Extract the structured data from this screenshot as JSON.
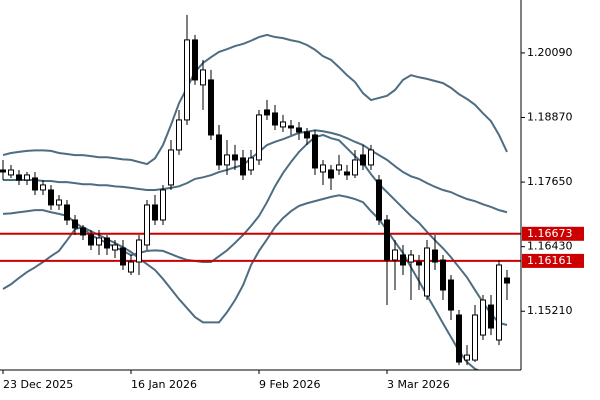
{
  "chart_data": {
    "type": "candlestick",
    "categories": [
      "23 Dec 2025",
      null,
      null,
      null,
      null,
      null,
      null,
      null,
      null,
      null,
      null,
      null,
      null,
      null,
      null,
      null,
      "16 Jan 2026",
      null,
      null,
      null,
      null,
      null,
      null,
      null,
      null,
      null,
      null,
      null,
      null,
      null,
      null,
      null,
      "9 Feb 2026",
      null,
      null,
      null,
      null,
      null,
      null,
      null,
      null,
      null,
      null,
      null,
      null,
      null,
      null,
      null,
      "3 Mar 2026",
      null,
      null,
      null,
      null,
      null,
      null,
      null,
      null,
      null,
      null,
      null,
      null,
      null,
      null,
      null
    ],
    "open": [
      1.17879,
      1.17785,
      1.17785,
      1.1769,
      1.17728,
      1.17501,
      1.17501,
      1.17218,
      1.17218,
      1.16934,
      1.16783,
      1.16651,
      1.16462,
      1.16594,
      1.16367,
      1.16405,
      1.15951,
      1.1614,
      1.16462,
      1.17218,
      1.16934,
      1.17596,
      1.18257,
      1.18824,
      1.20336,
      1.19486,
      1.1958,
      1.1854,
      1.17974,
      1.18163,
      1.18106,
      1.17879,
      1.18068,
      1.19013,
      1.18956,
      1.18692,
      1.18711,
      1.18673,
      1.18597,
      1.1854,
      1.17841,
      1.17879,
      1.17879,
      1.17841,
      1.17785,
      1.18163,
      1.17974,
      1.1769,
      1.16934,
      1.16178,
      1.16273,
      1.1614,
      1.1614,
      1.15498,
      1.16367,
      1.16178,
      1.158,
      1.15139,
      1.14288,
      1.14288,
      1.1476,
      1.15327,
      1.14666,
      1.15838
    ],
    "high": [
      1.18068,
      1.17974,
      1.17879,
      1.17841,
      1.17841,
      1.1769,
      1.17596,
      1.17407,
      1.17312,
      1.17029,
      1.1684,
      1.16745,
      1.16745,
      1.16651,
      1.16556,
      1.16556,
      1.16273,
      1.16651,
      1.17312,
      1.17407,
      1.17596,
      1.18446,
      1.19013,
      1.20808,
      1.20431,
      1.19958,
      1.19769,
      1.18729,
      1.18446,
      1.18352,
      1.18257,
      1.18257,
      1.19013,
      1.19202,
      1.19107,
      1.18919,
      1.18824,
      1.18786,
      1.18673,
      1.18635,
      1.18068,
      1.17974,
      1.18163,
      1.17974,
      1.18257,
      1.18352,
      1.18352,
      1.17785,
      1.17029,
      1.16556,
      1.16462,
      1.16367,
      1.16273,
      1.16556,
      1.16651,
      1.16273,
      1.15895,
      1.15233,
      1.14571,
      1.15327,
      1.15517,
      1.15517,
      1.16178,
      1.15989
    ],
    "low": [
      1.1769,
      1.17728,
      1.17596,
      1.17596,
      1.17407,
      1.17407,
      1.17123,
      1.17123,
      1.1684,
      1.16651,
      1.16556,
      1.16367,
      1.16273,
      1.16273,
      1.16216,
      1.15989,
      1.15895,
      1.15895,
      1.16367,
      1.1684,
      1.1684,
      1.17501,
      1.18163,
      1.18729,
      1.19486,
      1.19013,
      1.18446,
      1.17879,
      1.17785,
      1.17879,
      1.1769,
      1.17785,
      1.17974,
      1.18824,
      1.18635,
      1.18597,
      1.1854,
      1.18446,
      1.18352,
      1.17785,
      1.17596,
      1.17501,
      1.17785,
      1.1769,
      1.17728,
      1.17879,
      1.17879,
      1.1684,
      1.15327,
      1.15611,
      1.15895,
      1.15422,
      1.15611,
      1.15422,
      1.15989,
      1.15422,
      1.15044,
      1.14193,
      1.14193,
      1.1425,
      1.14666,
      1.1476,
      1.14571,
      1.15422
    ],
    "close": [
      1.17841,
      1.17879,
      1.1769,
      1.17785,
      1.17501,
      1.17596,
      1.17218,
      1.17312,
      1.16934,
      1.16783,
      1.16651,
      1.16462,
      1.16594,
      1.16405,
      1.16462,
      1.16084,
      1.1614,
      1.16556,
      1.17218,
      1.16934,
      1.17501,
      1.18257,
      1.18824,
      1.20336,
      1.1958,
      1.19769,
      1.1854,
      1.17974,
      1.18163,
      1.18068,
      1.17785,
      1.18106,
      1.18919,
      1.18919,
      1.18729,
      1.18786,
      1.18673,
      1.18597,
      1.18484,
      1.17917,
      1.17974,
      1.17728,
      1.17974,
      1.17785,
      1.18068,
      1.17974,
      1.18257,
      1.16934,
      1.16178,
      1.16367,
      1.16084,
      1.16273,
      1.16084,
      1.16405,
      1.1614,
      1.15611,
      1.15233,
      1.1425,
      1.14382,
      1.15139,
      1.15422,
      1.14893,
      1.16084,
      1.15743
    ],
    "up_color": "#ffffff",
    "down_color": "#000000",
    "bands": [
      {
        "color": "#4d6d82",
        "values": [
          1.1816,
          1.182,
          1.1822,
          1.1824,
          1.1825,
          1.1825,
          1.1824,
          1.182,
          1.1818,
          1.1816,
          1.1816,
          1.1814,
          1.1812,
          1.1812,
          1.181,
          1.1808,
          1.1807,
          1.1803,
          1.1799,
          1.181,
          1.1835,
          1.1873,
          1.1914,
          1.1943,
          1.1973,
          1.199,
          1.2001,
          1.2011,
          1.2016,
          1.2022,
          1.2026,
          1.2032,
          1.2039,
          1.2043,
          1.2039,
          1.2037,
          1.2033,
          1.203,
          1.2024,
          1.2015,
          1.2003,
          1.1996,
          1.1982,
          1.1967,
          1.1954,
          1.1933,
          1.192,
          1.1924,
          1.1928,
          1.1939,
          1.1958,
          1.1967,
          1.1963,
          1.196,
          1.1956,
          1.1952,
          1.1943,
          1.1931,
          1.1922,
          1.1911,
          1.1895,
          1.188,
          1.1854,
          1.1822
        ]
      },
      {
        "color": "#4d6d82",
        "values": [
          1.1769,
          1.1769,
          1.1769,
          1.1769,
          1.1769,
          1.1767,
          1.1767,
          1.1765,
          1.1765,
          1.1763,
          1.1761,
          1.1761,
          1.1759,
          1.1759,
          1.1757,
          1.1756,
          1.1754,
          1.1752,
          1.175,
          1.175,
          1.1752,
          1.1754,
          1.1757,
          1.1763,
          1.1771,
          1.1774,
          1.1778,
          1.1784,
          1.1788,
          1.1793,
          1.1797,
          1.181,
          1.1822,
          1.1835,
          1.1841,
          1.1846,
          1.1852,
          1.1858,
          1.186,
          1.1863,
          1.1861,
          1.1858,
          1.1854,
          1.1848,
          1.1841,
          1.1835,
          1.1825,
          1.1816,
          1.1807,
          1.1795,
          1.1784,
          1.1776,
          1.1771,
          1.1763,
          1.1756,
          1.175,
          1.1746,
          1.1739,
          1.1733,
          1.1729,
          1.1723,
          1.1718,
          1.1712,
          1.1708
        ]
      },
      {
        "color": "#4d6d82",
        "values": [
          1.1705,
          1.1706,
          1.1708,
          1.171,
          1.1712,
          1.1712,
          1.1708,
          1.1705,
          1.1701,
          1.1689,
          1.1678,
          1.1665,
          1.1657,
          1.165,
          1.1642,
          1.1635,
          1.1627,
          1.1631,
          1.1635,
          1.1636,
          1.1635,
          1.1629,
          1.1623,
          1.1618,
          1.1616,
          1.1614,
          1.1614,
          1.1625,
          1.1636,
          1.165,
          1.1665,
          1.1682,
          1.1701,
          1.1727,
          1.1757,
          1.1782,
          1.1803,
          1.1822,
          1.1837,
          1.185,
          1.1854,
          1.1848,
          1.1844,
          1.1829,
          1.1814,
          1.1801,
          1.178,
          1.1761,
          1.1746,
          1.1731,
          1.1716,
          1.1701,
          1.1688,
          1.1671,
          1.1655,
          1.164,
          1.1623,
          1.1604,
          1.1585,
          1.1561,
          1.1538,
          1.1516,
          1.1499,
          1.1495
        ]
      },
      {
        "color": "#4d6d82",
        "values": [
          1.1563,
          1.1572,
          1.1584,
          1.1595,
          1.1604,
          1.1614,
          1.1625,
          1.1635,
          1.1655,
          1.1676,
          1.168,
          1.1672,
          1.1665,
          1.1657,
          1.165,
          1.1642,
          1.1633,
          1.1621,
          1.161,
          1.1599,
          1.1582,
          1.1563,
          1.1544,
          1.1527,
          1.151,
          1.15,
          1.15,
          1.15,
          1.1519,
          1.1542,
          1.157,
          1.1608,
          1.1635,
          1.1657,
          1.168,
          1.1697,
          1.171,
          1.172,
          1.1725,
          1.1729,
          1.1733,
          1.1737,
          1.174,
          1.1737,
          1.1733,
          1.1727,
          1.171,
          1.1695,
          1.1674,
          1.1652,
          1.1631,
          1.1604,
          1.1578,
          1.1551,
          1.1525,
          1.1498,
          1.1472,
          1.1446,
          1.1425,
          1.1412,
          1.1406,
          1.14,
          1.1396,
          1.1395
        ]
      }
    ],
    "levels": [
      {
        "value": 1.16673,
        "color": "#cc0000"
      },
      {
        "value": 1.16161,
        "color": "#cc0000"
      }
    ],
    "ylim": [
      1.141,
      1.2109
    ],
    "yticks": [
      {
        "value": 1.2009,
        "label": "1.20090"
      },
      {
        "value": 1.1887,
        "label": "1.18870"
      },
      {
        "value": 1.1765,
        "label": "1.17650"
      },
      {
        "value": 1.1643,
        "label": "1.16430"
      },
      {
        "value": 1.1521,
        "label": "1.15210"
      }
    ]
  }
}
